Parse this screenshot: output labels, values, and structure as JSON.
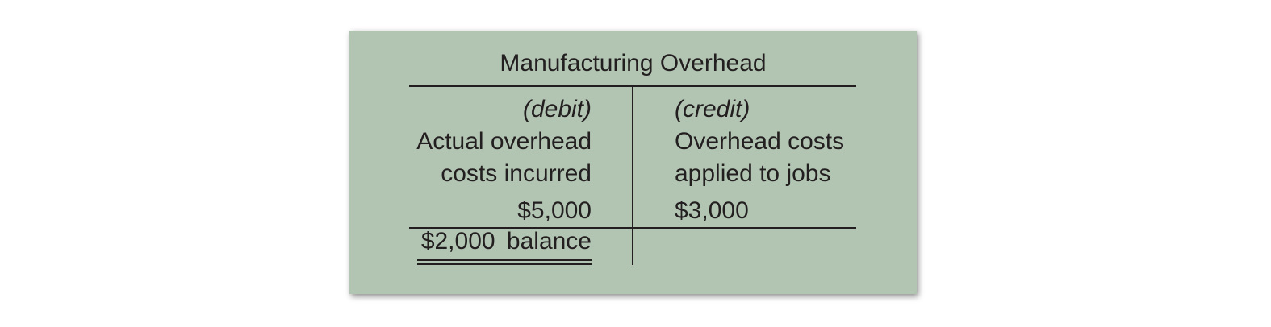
{
  "account": {
    "title": "Manufacturing Overhead",
    "debit": {
      "header": "(debit)",
      "line1": "Actual overhead",
      "line2": "costs incurred",
      "amount": "$5,000"
    },
    "credit": {
      "header": "(credit)",
      "line1": "Overhead costs",
      "line2": "applied to jobs",
      "amount": "$3,000"
    },
    "balance": "$2,000  balance"
  },
  "colors": {
    "panel": "#b2c5b2",
    "ink": "#231f20"
  }
}
